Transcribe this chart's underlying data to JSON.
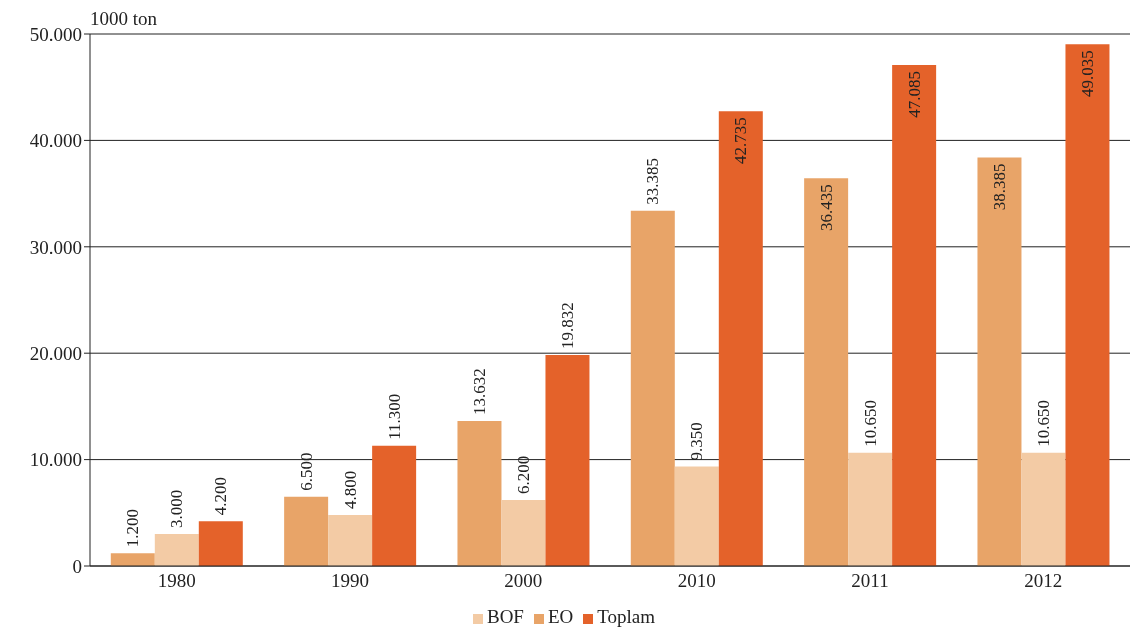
{
  "chart_data": {
    "type": "bar",
    "ylabel": "1000 ton",
    "categories": [
      "1980",
      "1990",
      "2000",
      "2010",
      "2011",
      "2012"
    ],
    "series": [
      {
        "name": "EO",
        "color": "#e8a468",
        "values": [
          1200,
          6500,
          13632,
          33385,
          36435,
          38385
        ],
        "value_labels": [
          "1.200",
          "6.500",
          "13.632",
          "33.385",
          "36.435",
          "38.385"
        ]
      },
      {
        "name": "BOF",
        "color": "#f3cba5",
        "values": [
          3000,
          4800,
          6200,
          9350,
          10650,
          10650
        ],
        "value_labels": [
          "3.000",
          "4.800",
          "6.200",
          "9.350",
          "10.650",
          "10.650"
        ]
      },
      {
        "name": "Toplam",
        "color": "#e4622a",
        "values": [
          4200,
          11300,
          19832,
          42735,
          47085,
          49035
        ],
        "value_labels": [
          "4.200",
          "11.300",
          "19.832",
          "42.735",
          "47.085",
          "49.035"
        ]
      }
    ],
    "ylim": [
      0,
      50000
    ],
    "yticks": [
      {
        "value": 0,
        "label": "0"
      },
      {
        "value": 10000,
        "label": "10.000"
      },
      {
        "value": 20000,
        "label": "20.000"
      },
      {
        "value": 30000,
        "label": "30.000"
      },
      {
        "value": 40000,
        "label": "40.000"
      },
      {
        "value": 50000,
        "label": "50.000"
      }
    ],
    "grid": "y",
    "legend": "bottom"
  }
}
